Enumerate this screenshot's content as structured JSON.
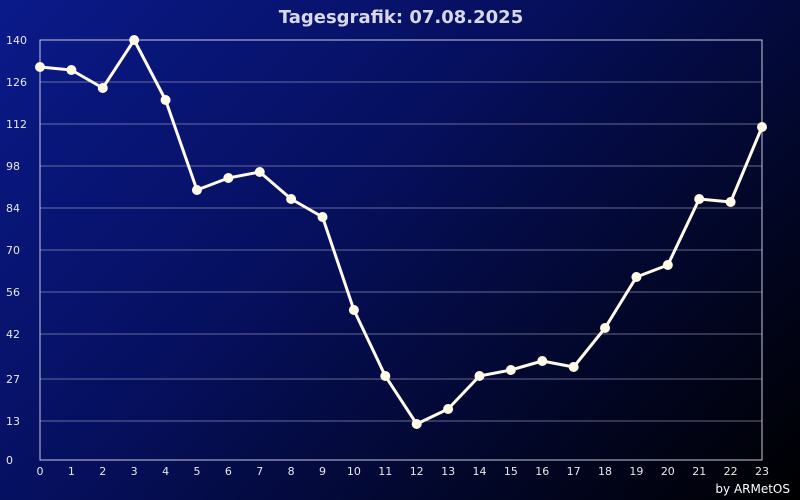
{
  "chart_data": {
    "type": "line",
    "title": "Tagesgrafik: 07.08.2025",
    "xlabel": "",
    "ylabel": "",
    "x": [
      0,
      1,
      2,
      3,
      4,
      5,
      6,
      7,
      8,
      9,
      10,
      11,
      12,
      13,
      14,
      15,
      16,
      17,
      18,
      19,
      20,
      21,
      22,
      23
    ],
    "x_tick_labels": [
      "0",
      "1",
      "2",
      "3",
      "4",
      "5",
      "6",
      "7",
      "8",
      "9",
      "10",
      "11",
      "12",
      "13",
      "14",
      "15",
      "16",
      "17",
      "18",
      "19",
      "20",
      "21",
      "22",
      "23"
    ],
    "y_ticks": [
      0,
      13,
      27,
      42,
      56,
      70,
      84,
      98,
      112,
      126,
      140
    ],
    "y_tick_labels": [
      "0",
      "13",
      "27",
      "42",
      "56",
      "70",
      "84",
      "98",
      "112",
      "126",
      "140"
    ],
    "ylim": [
      0,
      140
    ],
    "xlim": [
      0,
      23
    ],
    "grid": "horizontal",
    "series": [
      {
        "values": [
          131,
          130,
          124,
          140,
          120,
          90,
          94,
          96,
          87,
          81,
          50,
          28,
          12,
          17,
          28,
          30,
          33,
          31,
          44,
          61,
          65,
          87,
          86,
          111
        ],
        "color": "#fffbe8"
      }
    ],
    "background_colors": [
      "#0a1a8a",
      "#000000"
    ]
  },
  "credit": "by ARMetOS"
}
